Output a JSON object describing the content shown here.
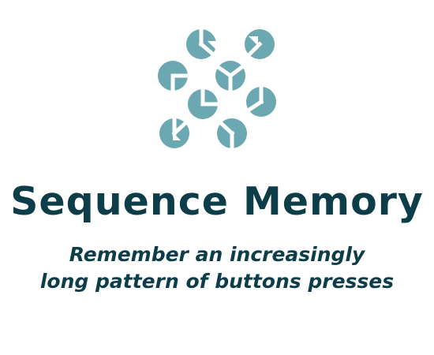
{
  "app": {
    "logo_icon": "sequence-memory-icon",
    "title": "Sequence Memory",
    "subtitle_lines": [
      "Remember an increasingly",
      "long pattern of buttons presses"
    ]
  },
  "colors": {
    "accent": "#6ba8b1",
    "text": "#0e3d4a",
    "background": "#ffffff"
  }
}
